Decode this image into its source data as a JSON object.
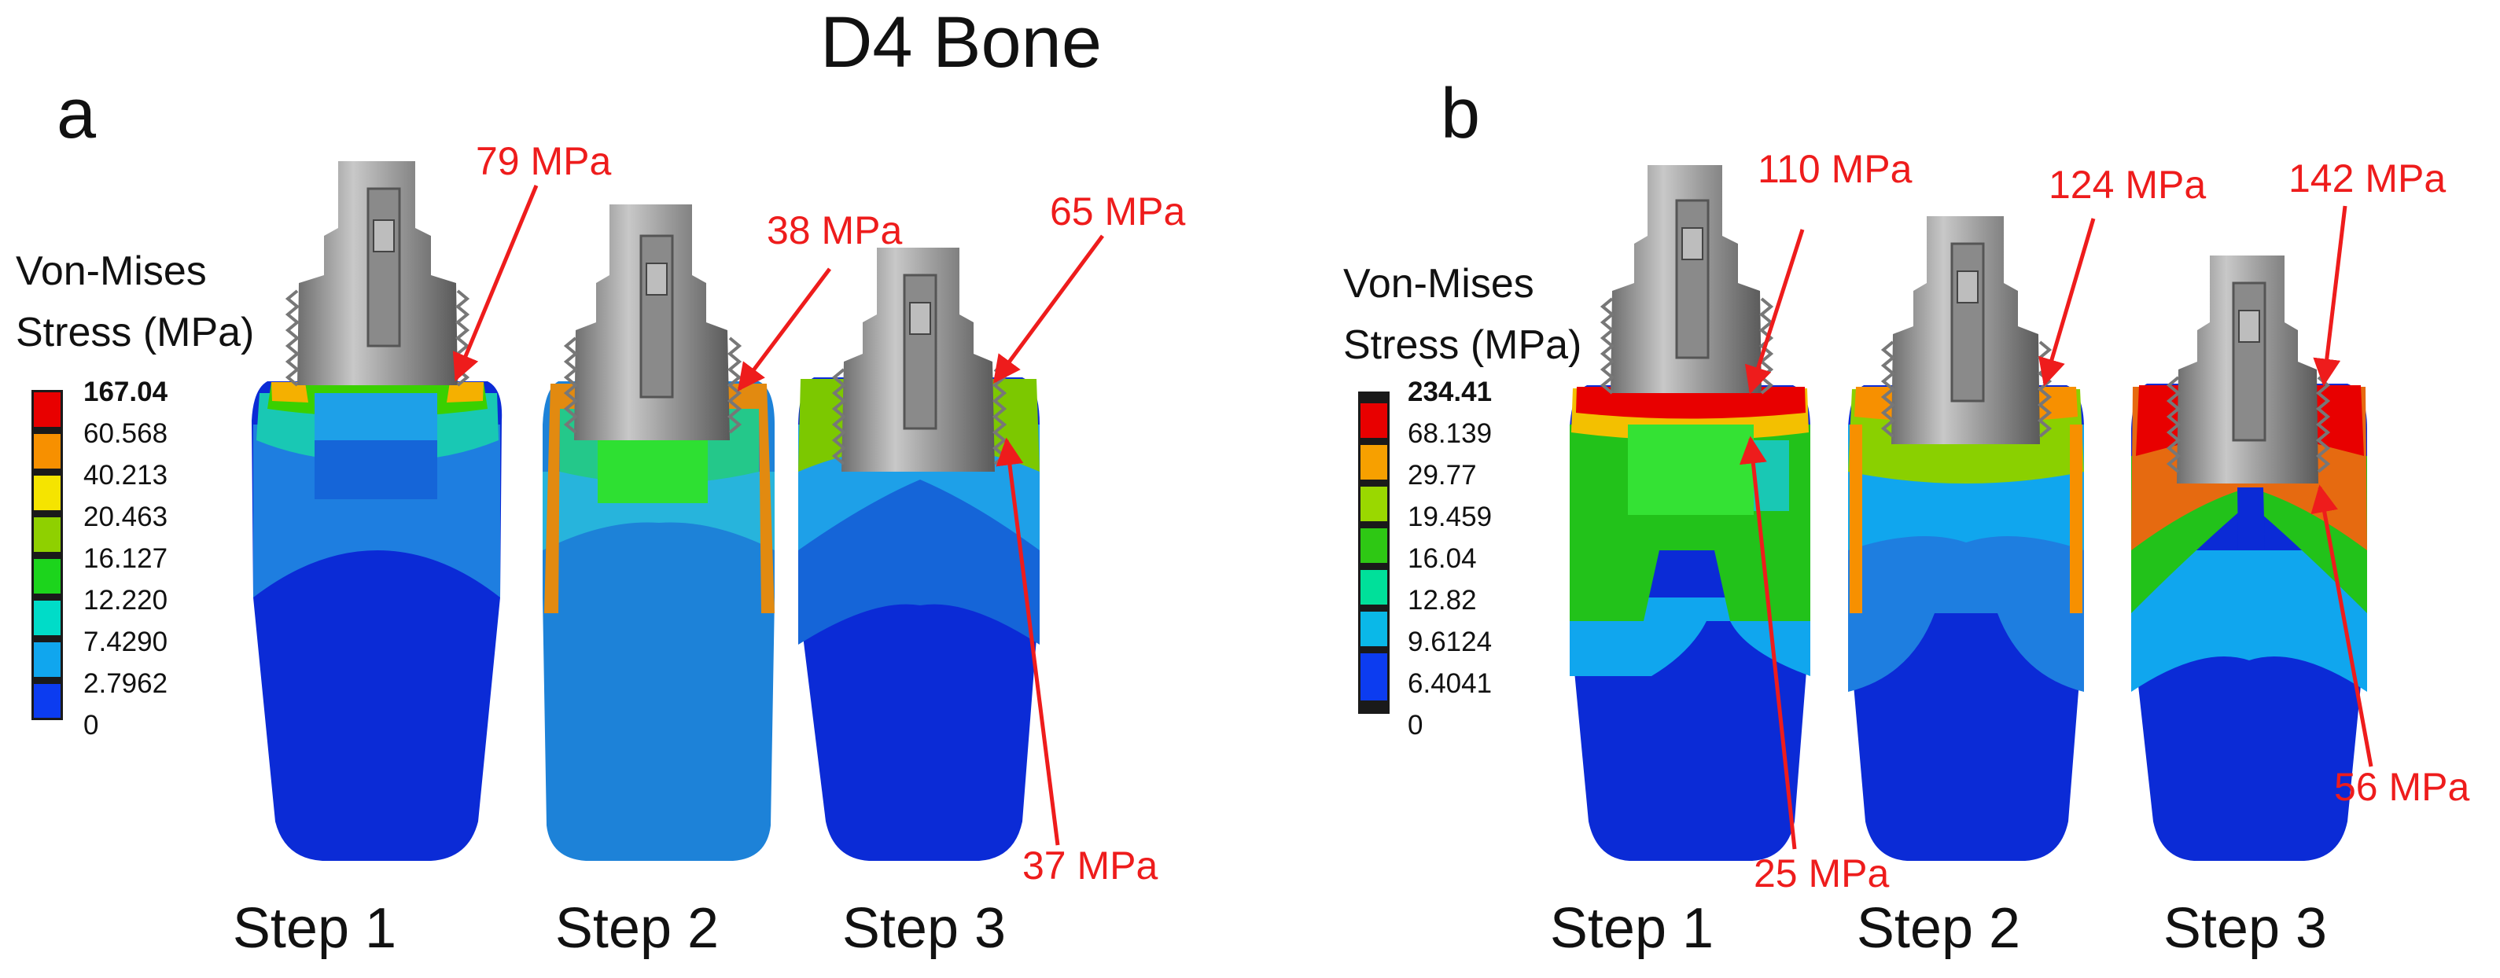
{
  "title": "D4 Bone",
  "colors": {
    "annotation": "#ee1c1c",
    "implant_gray": "#9a9a9a",
    "legend_a": [
      "#e80000",
      "#f79000",
      "#f5e400",
      "#8fd000",
      "#1cd41c",
      "#00dcc8",
      "#10a6ee",
      "#0c3cf0"
    ],
    "legend_b": [
      "#e80000",
      "#f7a000",
      "#9ad800",
      "#2ec814",
      "#00e09a",
      "#0ab8e8",
      "#0c3cf0"
    ]
  },
  "panels": [
    {
      "label": "a",
      "legend": {
        "title_line1": "Von-Mises",
        "title_line2": "Stress (MPa)",
        "values": [
          "167.04",
          "60.568",
          "40.213",
          "20.463",
          "16.127",
          "12.220",
          "7.4290",
          "2.7962",
          "0"
        ]
      },
      "steps": [
        "Step 1",
        "Step 2",
        "Step 3"
      ],
      "annotations": [
        "79 MPa",
        "38 MPa",
        "65 MPa",
        "37 MPa"
      ]
    },
    {
      "label": "b",
      "legend": {
        "title_line1": "Von-Mises",
        "title_line2": "Stress (MPa)",
        "values": [
          "234.41",
          "68.139",
          "29.77",
          "19.459",
          "16.04",
          "12.82",
          "9.6124",
          "6.4041",
          "0"
        ]
      },
      "steps": [
        "Step 1",
        "Step 2",
        "Step 3"
      ],
      "annotations": [
        "110 MPa",
        "124 MPa",
        "142 MPa",
        "25 MPa",
        "56 MPa"
      ]
    }
  ]
}
